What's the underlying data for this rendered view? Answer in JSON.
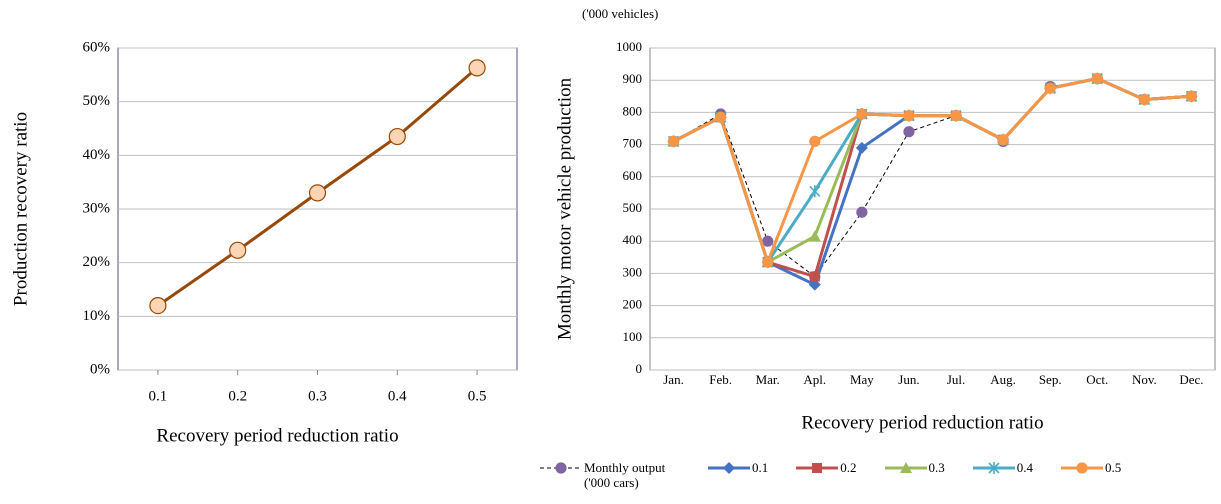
{
  "chart_data": [
    {
      "type": "line",
      "x": [
        0.1,
        0.2,
        0.3,
        0.4,
        0.5
      ],
      "xlim": [
        0.05,
        0.55
      ],
      "xticks": [
        0.1,
        0.2,
        0.3,
        0.4,
        0.5
      ],
      "ylim": [
        0,
        60
      ],
      "yticks": [
        {
          "value": 0,
          "label": "0%"
        },
        {
          "value": 10,
          "label": "10%"
        },
        {
          "value": 20,
          "label": "20%"
        },
        {
          "value": 30,
          "label": "30%"
        },
        {
          "value": 40,
          "label": "40%"
        },
        {
          "value": 50,
          "label": "50%"
        },
        {
          "value": 60,
          "label": "60%"
        }
      ],
      "grid": true,
      "y_label": "Production recovery ratio",
      "x_label": "Recovery period reduction ratio",
      "series": [
        {
          "color": "#984807",
          "marker": "circle",
          "marker_fill": "#fcd5b4",
          "values": [
            12,
            22.3,
            33,
            43.5,
            56.3
          ]
        }
      ]
    },
    {
      "type": "line",
      "unit_note": "('000 vehicles)",
      "categories": [
        "Jan.",
        "Feb.",
        "Mar.",
        "Apl.",
        "May",
        "Jun.",
        "Jul.",
        "Aug.",
        "Sep.",
        "Oct.",
        "Nov.",
        "Dec."
      ],
      "ylim": [
        0,
        1000
      ],
      "yticks": [
        0,
        100,
        200,
        300,
        400,
        500,
        600,
        700,
        800,
        900,
        1000
      ],
      "grid": true,
      "y_label": "Monthly motor vehicle production",
      "x_label": "Recovery period reduction ratio",
      "legend": "bottom",
      "series": [
        {
          "name": "Monthly output ('000 cars)",
          "color": "#000000",
          "dashed": true,
          "marker": "circle",
          "marker_fill": "#8064a2",
          "values": [
            710,
            795,
            400,
            290,
            490,
            740,
            790,
            710,
            880,
            905,
            840,
            850
          ]
        },
        {
          "name": "0.1",
          "color": "#4472c4",
          "marker": "diamond",
          "values": [
            710,
            785,
            335,
            265,
            690,
            790,
            790,
            715,
            875,
            905,
            840,
            850
          ]
        },
        {
          "name": "0.2",
          "color": "#c0504d",
          "marker": "square",
          "values": [
            710,
            785,
            335,
            290,
            795,
            790,
            790,
            715,
            875,
            905,
            840,
            850
          ]
        },
        {
          "name": "0.3",
          "color": "#9bbb59",
          "marker": "triangle",
          "values": [
            710,
            785,
            335,
            415,
            795,
            790,
            790,
            715,
            875,
            905,
            840,
            850
          ]
        },
        {
          "name": "0.4",
          "color": "#4bacc6",
          "marker": "star",
          "values": [
            710,
            785,
            335,
            555,
            795,
            790,
            790,
            715,
            875,
            905,
            840,
            850
          ]
        },
        {
          "name": "0.5",
          "color": "#f79646",
          "marker": "circle",
          "values": [
            710,
            785,
            335,
            710,
            795,
            790,
            790,
            715,
            875,
            905,
            840,
            850
          ]
        }
      ]
    }
  ]
}
